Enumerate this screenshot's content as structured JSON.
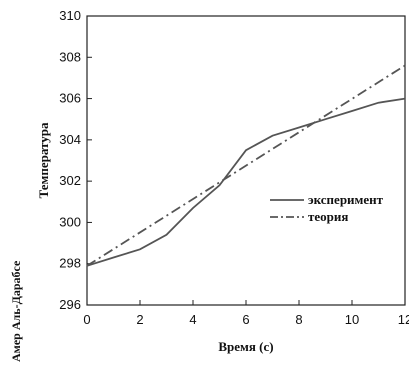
{
  "side_caption": "Амер Аль-Дарабсе",
  "chart_data": {
    "type": "line",
    "title": "",
    "xlabel": "Время (с)",
    "ylabel": "Температура",
    "xlim": [
      0,
      12
    ],
    "ylim": [
      296,
      310
    ],
    "x_ticks": [
      "0",
      "2",
      "4",
      "6",
      "8",
      "10",
      "12"
    ],
    "y_ticks": [
      "296",
      "298",
      "300",
      "302",
      "304",
      "306",
      "308",
      "310"
    ],
    "grid": false,
    "legend_position": "right",
    "series": [
      {
        "name": "эксперимент",
        "style": "solid",
        "color": "#555555",
        "x": [
          0,
          1,
          2,
          3,
          4,
          5,
          6,
          7,
          8,
          9,
          10,
          11,
          12
        ],
        "y": [
          297.9,
          298.3,
          298.7,
          299.4,
          300.7,
          301.8,
          303.5,
          304.2,
          304.6,
          305.0,
          305.4,
          305.8,
          306.0
        ]
      },
      {
        "name": "теория",
        "style": "dashdot",
        "color": "#555555",
        "x": [
          0,
          12
        ],
        "y": [
          297.9,
          307.6
        ]
      }
    ]
  }
}
